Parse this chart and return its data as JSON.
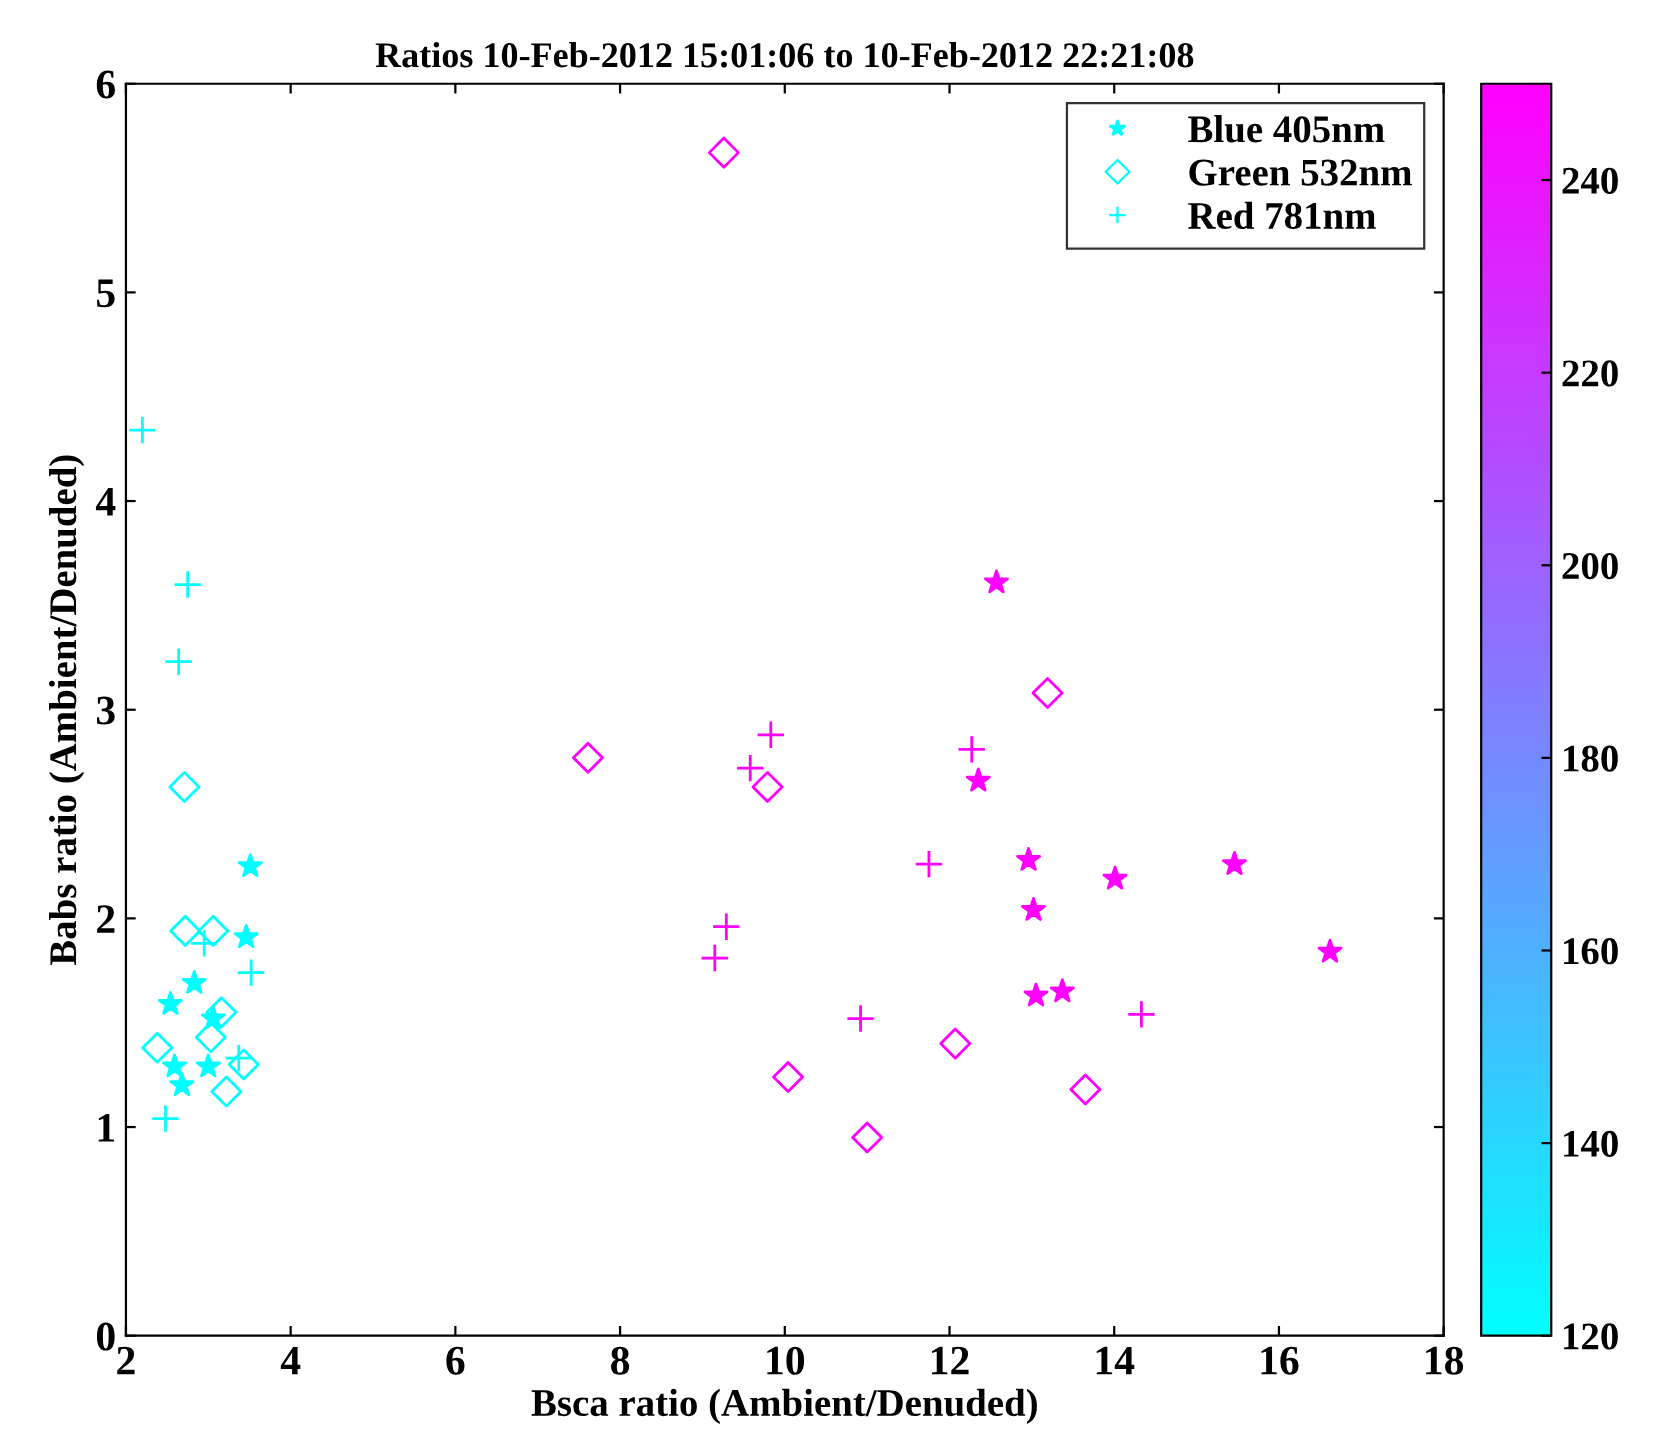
{
  "chart_data": {
    "type": "scatter",
    "title": "Ratios 10-Feb-2012 15:01:06 to 10-Feb-2012 22:21:08",
    "xlabel": "Bsca ratio (Ambient/Denuded)",
    "ylabel": "Babs ratio (Ambient/Denuded)",
    "xlim": [
      2,
      18
    ],
    "xticks": [
      2,
      4,
      6,
      8,
      10,
      12,
      14,
      16,
      18
    ],
    "ylim": [
      0,
      6
    ],
    "yticks": [
      0,
      1,
      2,
      3,
      4,
      5,
      6
    ],
    "clim": [
      120,
      250
    ],
    "cticks": [
      120,
      140,
      160,
      180,
      200,
      220,
      240
    ],
    "grid": false,
    "legend": "top right",
    "series": [
      {
        "name": "Blue 405nm",
        "marker": "star",
        "x": [
          3.51,
          3.46,
          2.83,
          2.54,
          3.06,
          2.59,
          3.0,
          2.68,
          12.57,
          12.35,
          12.96,
          13.02,
          13.05,
          13.37,
          14.01,
          15.46,
          16.62
        ],
        "values": [
          2.25,
          1.91,
          1.69,
          1.59,
          1.52,
          1.29,
          1.29,
          1.2,
          3.61,
          2.66,
          2.28,
          2.04,
          1.63,
          1.65,
          2.19,
          2.26,
          1.84
        ],
        "colors": [
          "#00ffff",
          "#00ffff",
          "#00ffff",
          "#00ffff",
          "#00ffff",
          "#00ffff",
          "#00ffff",
          "#00ffff",
          "#ff00ff",
          "#ff00ff",
          "#ff00ff",
          "#ff00ff",
          "#ff00ff",
          "#ff00ff",
          "#ff00ff",
          "#ff00ff",
          "#ff00ff"
        ]
      },
      {
        "name": "Green 532nm",
        "marker": "diamond",
        "x": [
          2.71,
          2.72,
          3.06,
          3.16,
          2.38,
          3.03,
          3.43,
          3.22,
          9.26,
          7.61,
          9.79,
          13.19,
          12.07,
          10.04,
          11.0,
          13.65
        ],
        "values": [
          2.63,
          1.94,
          1.94,
          1.55,
          1.38,
          1.43,
          1.3,
          1.17,
          5.67,
          2.77,
          2.63,
          3.08,
          1.4,
          1.24,
          0.95,
          1.18
        ],
        "colors": [
          "#00ffff",
          "#00ffff",
          "#00ffff",
          "#00ffff",
          "#00ffff",
          "#00ffff",
          "#00ffff",
          "#00ffff",
          "#ff00ff",
          "#ff00ff",
          "#ff00ff",
          "#ff00ff",
          "#ff00ff",
          "#ff00ff",
          "#ff00ff",
          "#ff00ff"
        ]
      },
      {
        "name": "Red 781nm",
        "marker": "cross",
        "x": [
          2.2,
          2.75,
          2.64,
          2.95,
          3.52,
          2.48,
          3.37,
          9.83,
          9.58,
          12.27,
          11.75,
          9.29,
          9.15,
          10.92,
          14.33
        ],
        "values": [
          4.34,
          3.6,
          3.23,
          1.88,
          1.74,
          1.04,
          1.33,
          2.88,
          2.72,
          2.81,
          2.26,
          1.96,
          1.81,
          1.52,
          1.54
        ],
        "colors": [
          "#00ffff",
          "#00ffff",
          "#00ffff",
          "#00ffff",
          "#00ffff",
          "#00ffff",
          "#00ffff",
          "#ff00ff",
          "#ff00ff",
          "#ff00ff",
          "#ff00ff",
          "#ff00ff",
          "#ff00ff",
          "#ff00ff",
          "#ff00ff"
        ]
      }
    ]
  }
}
